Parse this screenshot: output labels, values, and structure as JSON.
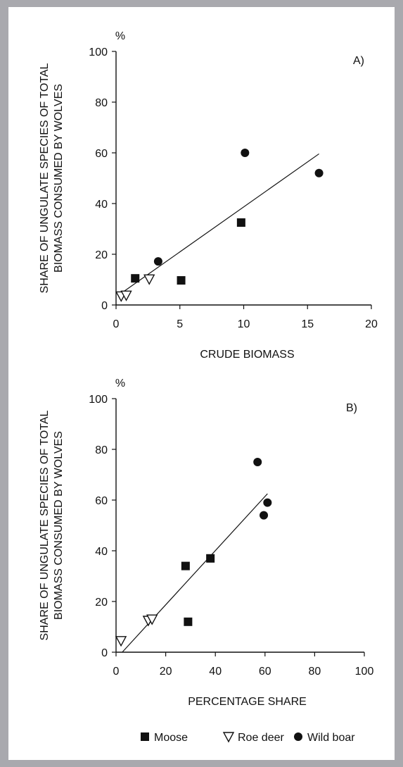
{
  "chart_data": [
    {
      "type": "scatter",
      "panel_label": "A)",
      "ylabel": "SHARE OF UNGULATE SPECIES OF TOTAL BIOMASS CONSUMED BY WOLVES",
      "yunit": "%",
      "xlabel": "CRUDE BIOMASS",
      "xlim": [
        0,
        20
      ],
      "ylim": [
        0,
        100
      ],
      "xticks": [
        0,
        5,
        10,
        15,
        20
      ],
      "yticks": [
        0,
        20,
        40,
        60,
        80,
        100
      ],
      "series": [
        {
          "name": "Moose",
          "marker": "square",
          "points": [
            [
              1.5,
              10.5
            ],
            [
              5.1,
              9.7
            ],
            [
              9.8,
              32.5
            ]
          ]
        },
        {
          "name": "Roe deer",
          "marker": "triangle-down",
          "points": [
            [
              0.4,
              3.5
            ],
            [
              0.8,
              3.8
            ],
            [
              2.6,
              10.2
            ]
          ]
        },
        {
          "name": "Wild boar",
          "marker": "circle",
          "points": [
            [
              3.3,
              17.2
            ],
            [
              10.1,
              60.0
            ],
            [
              15.9,
              52.0
            ]
          ]
        }
      ],
      "fit_line": [
        [
          0.2,
          3.9
        ],
        [
          15.9,
          59.6
        ]
      ],
      "grid": false
    },
    {
      "type": "scatter",
      "panel_label": "B)",
      "ylabel": "SHARE OF UNGULATE SPECIES OF TOTAL BIOMASS CONSUMED BY WOLVES",
      "yunit": "%",
      "xlabel": "PERCENTAGE SHARE",
      "xlim": [
        0,
        100
      ],
      "ylim": [
        0,
        100
      ],
      "xticks": [
        0,
        20,
        40,
        60,
        80,
        100
      ],
      "yticks": [
        0,
        20,
        40,
        60,
        80,
        100
      ],
      "series": [
        {
          "name": "Moose",
          "marker": "square",
          "points": [
            [
              28,
              34
            ],
            [
              29,
              12
            ],
            [
              38,
              37
            ]
          ]
        },
        {
          "name": "Roe deer",
          "marker": "triangle-down",
          "points": [
            [
              2,
              4.5
            ],
            [
              13,
              12.5
            ],
            [
              14.5,
              13
            ]
          ]
        },
        {
          "name": "Wild boar",
          "marker": "circle",
          "points": [
            [
              57,
              75
            ],
            [
              59.5,
              54
            ],
            [
              61,
              59
            ]
          ]
        }
      ],
      "fit_line": [
        [
          2.5,
          0
        ],
        [
          61,
          62.5
        ]
      ],
      "grid": false
    }
  ],
  "legend": {
    "placement": "bottom",
    "items": [
      {
        "label": "Moose",
        "marker": "square"
      },
      {
        "label": "Roe deer",
        "marker": "triangle-down"
      },
      {
        "label": "Wild boar",
        "marker": "circle"
      }
    ]
  },
  "colors": {
    "background": "#a9a9ae",
    "panel": "#ffffff",
    "ink": "#111111"
  }
}
